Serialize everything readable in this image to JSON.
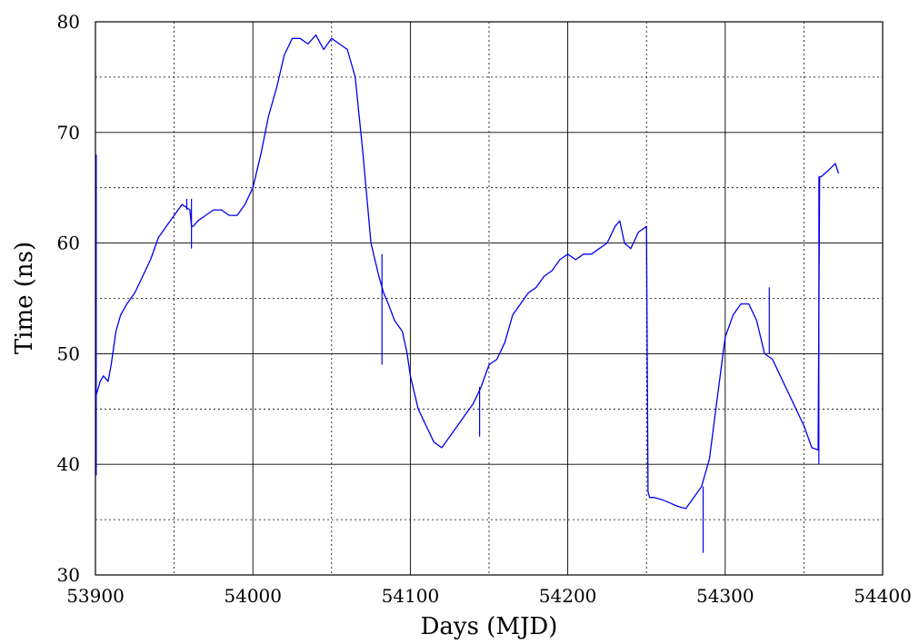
{
  "chart_data": {
    "type": "line",
    "title": "",
    "xlabel": "Days (MJD)",
    "ylabel": "Time (ns)",
    "xlim": [
      53900,
      54400
    ],
    "ylim": [
      30,
      80
    ],
    "x_ticks": [
      53900,
      54000,
      54100,
      54200,
      54300,
      54400
    ],
    "y_ticks": [
      30,
      40,
      50,
      60,
      70,
      80
    ],
    "x_tick_labels": [
      "53900",
      "54000",
      "54100",
      "54200",
      "54300",
      "54400"
    ],
    "y_tick_labels": [
      "30",
      "40",
      "50",
      "60",
      "70",
      "80"
    ],
    "grid": "major solid, minor dotted",
    "series_color": "#0000ee",
    "series": [
      {
        "x": [
          53900,
          53901,
          53903,
          53905,
          53908,
          53910,
          53913,
          53916,
          53920,
          53925,
          53930,
          53935,
          53940,
          53945,
          53950,
          53955,
          53960,
          53961,
          53962,
          53965,
          53970,
          53975,
          53980,
          53985,
          53990,
          53995,
          54000,
          54005,
          54010,
          54015,
          54020,
          54025,
          54030,
          54035,
          54040,
          54045,
          54050,
          54055,
          54060,
          54065,
          54070,
          54075,
          54080,
          54083,
          54086,
          54090,
          54095,
          54098,
          54100,
          54105,
          54110,
          54115,
          54120,
          54125,
          54130,
          54135,
          54140,
          54145,
          54150,
          54155,
          54160,
          54165,
          54170,
          54175,
          54180,
          54185,
          54190,
          54195,
          54200,
          54205,
          54210,
          54215,
          54220,
          54225,
          54230,
          54233,
          54236,
          54240,
          54245,
          54250,
          54251,
          54252,
          54255,
          54260,
          54265,
          54270,
          54275,
          54280,
          54285,
          54290,
          54295,
          54300,
          54305,
          54310,
          54315,
          54320,
          54325,
          54330,
          54335,
          54340,
          54345,
          54350,
          54355,
          54359,
          54360,
          54361,
          54365,
          54370,
          54372
        ],
        "y": [
          46,
          46.5,
          47.5,
          48,
          47.5,
          49,
          52,
          53.5,
          54.5,
          55.5,
          57,
          58.5,
          60.5,
          61.5,
          62.5,
          63.5,
          63,
          61.5,
          61.5,
          62,
          62.5,
          63,
          63,
          62.5,
          62.5,
          63.5,
          65,
          68,
          71.5,
          74,
          77,
          78.5,
          78.5,
          78,
          78.8,
          77.5,
          78.5,
          78,
          77.5,
          75,
          68,
          60,
          57,
          55.5,
          54.5,
          53,
          52,
          50,
          48,
          45,
          43.5,
          42,
          41.5,
          42.5,
          43.5,
          44.5,
          45.5,
          47,
          49,
          49.5,
          51,
          53.5,
          54.5,
          55.5,
          56,
          57,
          57.5,
          58.5,
          59,
          58.5,
          59,
          59,
          59.5,
          60,
          61.5,
          62,
          60,
          59.5,
          61,
          61.5,
          37.5,
          37,
          37,
          36.8,
          36.5,
          36.2,
          36,
          37,
          38,
          40.5,
          46,
          51.5,
          53.5,
          54.5,
          54.5,
          53,
          50,
          49.5,
          48,
          46.5,
          45,
          43.5,
          41.5,
          41.3,
          66,
          66,
          66.5,
          67.2,
          66.3
        ]
      }
    ],
    "spikes": [
      {
        "x": 53900.5,
        "y1": 39,
        "y2": 68
      },
      {
        "x": 53958,
        "y1": 63,
        "y2": 64
      },
      {
        "x": 53961,
        "y1": 59.5,
        "y2": 64
      },
      {
        "x": 54082,
        "y1": 49,
        "y2": 59
      },
      {
        "x": 54144,
        "y1": 42.5,
        "y2": 47
      },
      {
        "x": 54286,
        "y1": 32,
        "y2": 38
      },
      {
        "x": 54328,
        "y1": 50,
        "y2": 56
      },
      {
        "x": 54359.5,
        "y1": 40,
        "y2": 66
      }
    ]
  }
}
